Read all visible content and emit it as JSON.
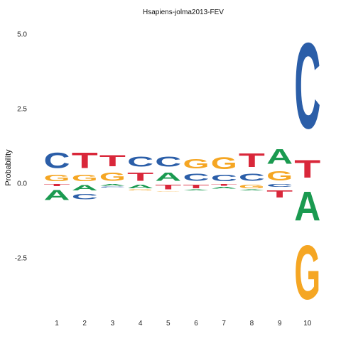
{
  "chart_data": {
    "type": "sequence-logo",
    "title": "Hsapiens-jolma2013-FEV",
    "ylabel": "Probability",
    "ylim": [
      -4.2,
      5.2
    ],
    "yticks": [
      {
        "value": 5.0,
        "label": "5.0"
      },
      {
        "value": 2.5,
        "label": "2.5"
      },
      {
        "value": 0.0,
        "label": "0.0"
      },
      {
        "value": -2.5,
        "label": "-2.5"
      }
    ],
    "colors": {
      "A": "#1a9a50",
      "C": "#2b5ea8",
      "G": "#f5a623",
      "T": "#d9273a"
    },
    "positions": [
      {
        "label": "1",
        "above": [
          {
            "base": "G",
            "h": 0.35
          },
          {
            "base": "C",
            "h": 0.85
          }
        ],
        "below": [
          {
            "base": "T",
            "h": 0.12
          },
          {
            "base": "A",
            "h": 0.55
          }
        ]
      },
      {
        "label": "2",
        "above": [
          {
            "base": "G",
            "h": 0.35
          },
          {
            "base": "T",
            "h": 0.85
          }
        ],
        "below": [
          {
            "base": "A",
            "h": 0.3
          },
          {
            "base": "C",
            "h": 0.3
          }
        ]
      },
      {
        "label": "3",
        "above": [
          {
            "base": "G",
            "h": 0.45
          },
          {
            "base": "T",
            "h": 0.6
          }
        ],
        "below": [
          {
            "base": "A",
            "h": 0.1
          },
          {
            "base": "C",
            "h": 0.05
          }
        ]
      },
      {
        "label": "4",
        "above": [
          {
            "base": "T",
            "h": 0.45
          },
          {
            "base": "C",
            "h": 0.55
          }
        ],
        "below": [
          {
            "base": "A",
            "h": 0.2
          },
          {
            "base": "G",
            "h": 0.05
          }
        ]
      },
      {
        "label": "5",
        "above": [
          {
            "base": "A",
            "h": 0.45
          },
          {
            "base": "C",
            "h": 0.55
          }
        ],
        "below": [
          {
            "base": "T",
            "h": 0.25
          },
          {
            "base": "G",
            "h": 0.03
          }
        ]
      },
      {
        "label": "6",
        "above": [
          {
            "base": "C",
            "h": 0.4
          },
          {
            "base": "G",
            "h": 0.5
          }
        ],
        "below": [
          {
            "base": "T",
            "h": 0.2
          },
          {
            "base": "A",
            "h": 0.05
          }
        ]
      },
      {
        "label": "7",
        "above": [
          {
            "base": "C",
            "h": 0.35
          },
          {
            "base": "G",
            "h": 0.65
          }
        ],
        "below": [
          {
            "base": "T",
            "h": 0.1
          },
          {
            "base": "A",
            "h": 0.1
          }
        ]
      },
      {
        "label": "8",
        "above": [
          {
            "base": "C",
            "h": 0.4
          },
          {
            "base": "T",
            "h": 0.75
          }
        ],
        "below": [
          {
            "base": "G",
            "h": 0.2
          },
          {
            "base": "A",
            "h": 0.05
          }
        ]
      },
      {
        "label": "9",
        "above": [
          {
            "base": "G",
            "h": 0.5
          },
          {
            "base": "A",
            "h": 0.8
          }
        ],
        "below": [
          {
            "base": "C",
            "h": 0.15
          },
          {
            "base": "T",
            "h": 0.4
          }
        ]
      },
      {
        "label": "10",
        "above": [
          {
            "base": "T",
            "h": 0.95
          },
          {
            "base": "C",
            "h": 4.6
          }
        ],
        "below": [
          {
            "base": "A",
            "h": 1.55
          },
          {
            "base": "G",
            "h": 2.9
          }
        ]
      }
    ]
  }
}
